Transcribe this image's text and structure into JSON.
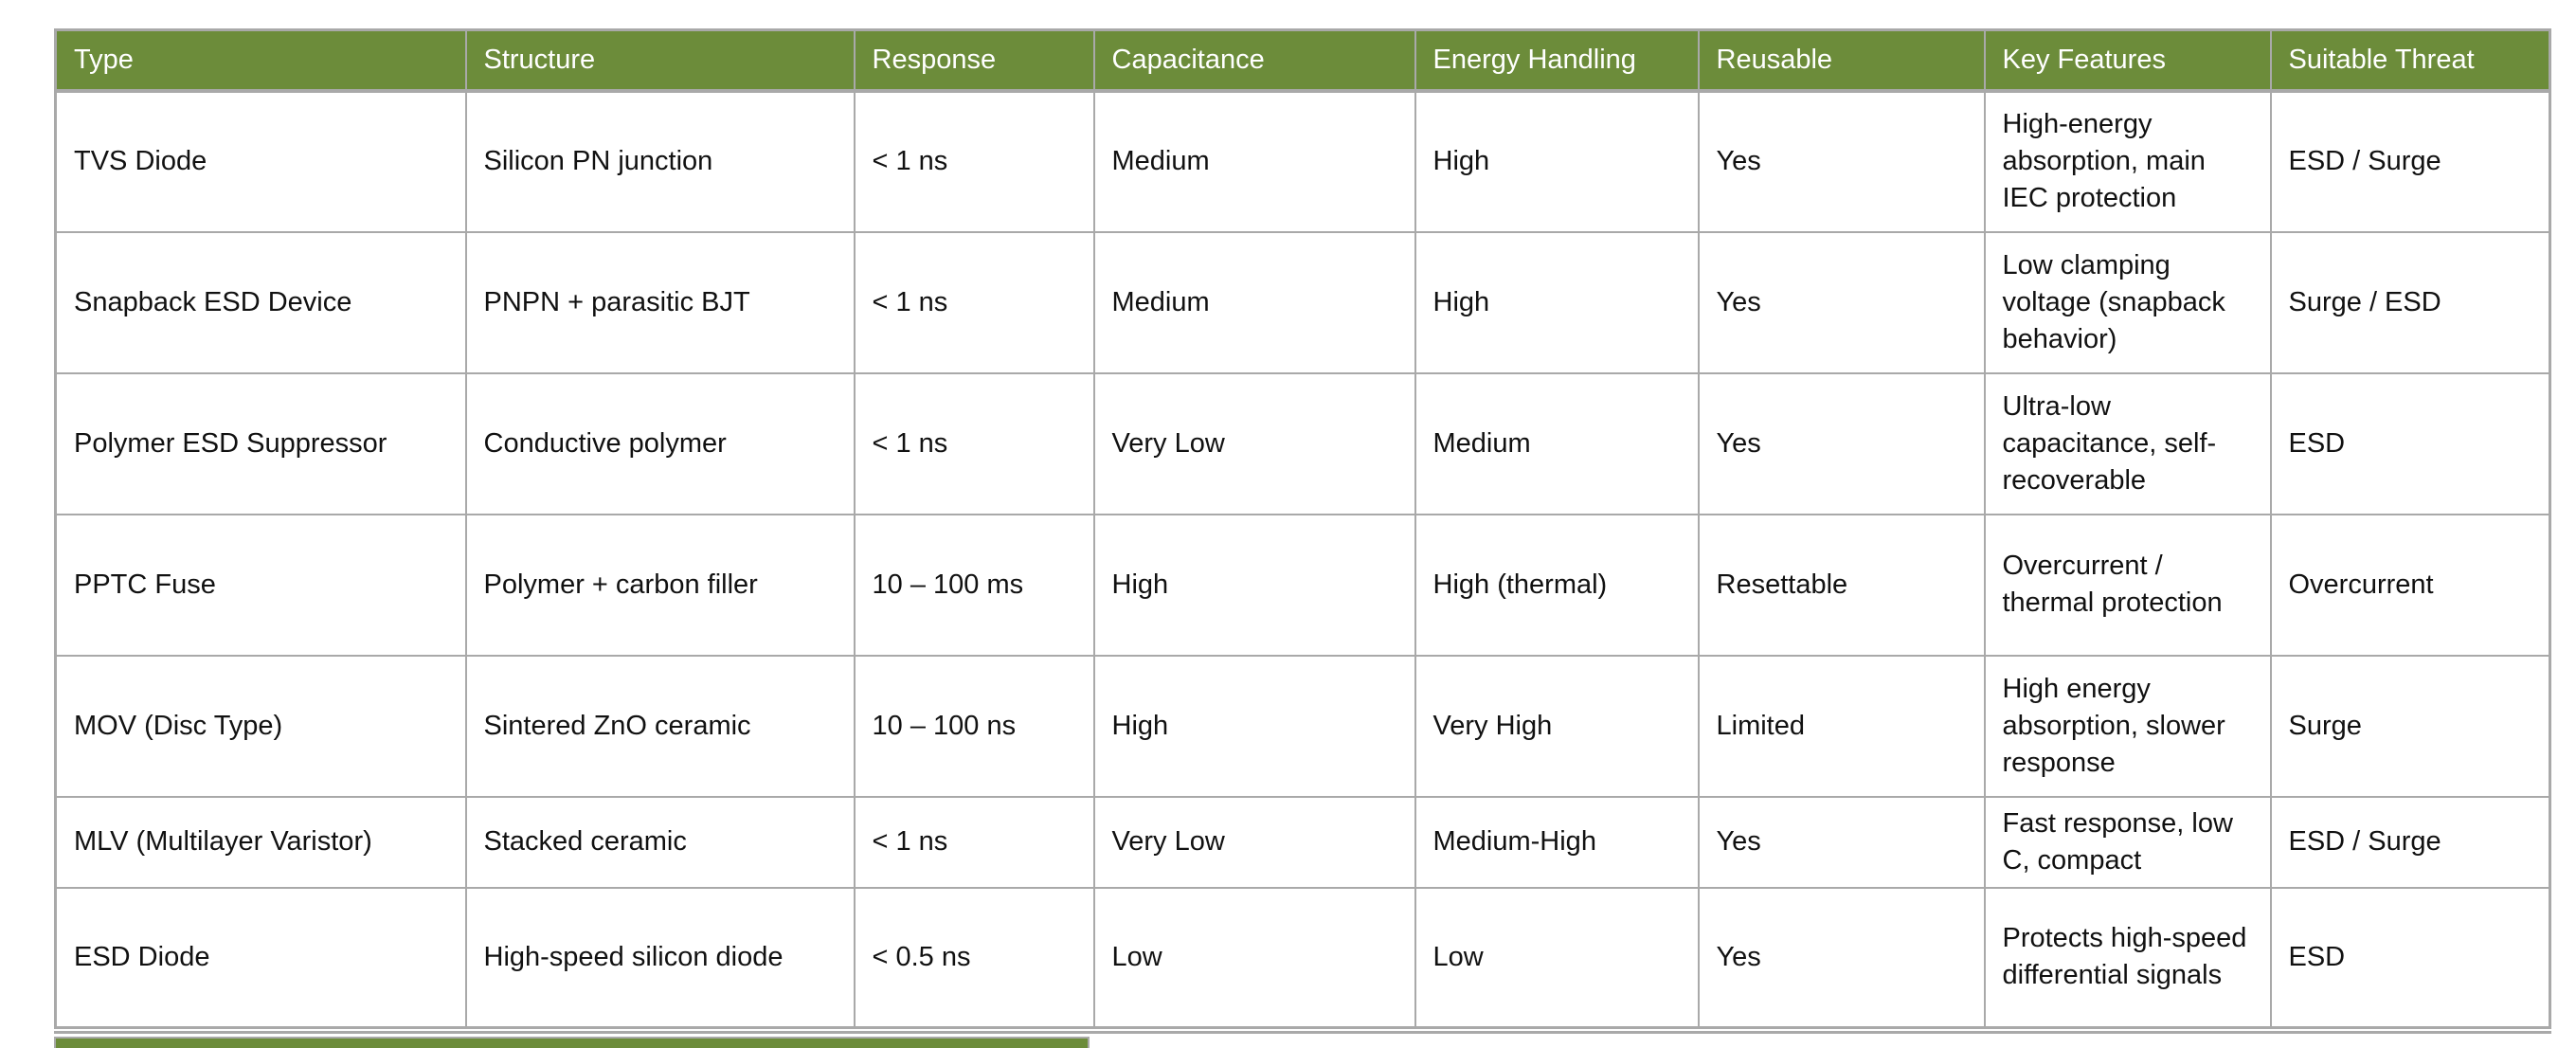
{
  "table": {
    "columns": [
      "Type",
      "Structure",
      "Response",
      "Capacitance",
      "Energy Handling",
      "Reusable",
      "Key Features",
      "Suitable Threat"
    ],
    "rows": [
      [
        "TVS Diode",
        "Silicon PN junction",
        "< 1 ns",
        "Medium",
        "High",
        "Yes",
        "High-energy absorption, main IEC protection",
        "ESD / Surge"
      ],
      [
        "Snapback ESD Device",
        "PNPN + parasitic BJT",
        "< 1 ns",
        "Medium",
        "High",
        "Yes",
        "Low clamping voltage (snapback behavior)",
        "Surge / ESD"
      ],
      [
        "Polymer ESD Suppressor",
        "Conductive polymer",
        "< 1 ns",
        "Very Low",
        "Medium",
        "Yes",
        "Ultra-low capacitance, self-recoverable",
        "ESD"
      ],
      [
        "PPTC Fuse",
        "Polymer + carbon filler",
        "10 – 100 ms",
        "High",
        "High (thermal)",
        "Resettable",
        "Overcurrent / thermal protection",
        "Overcurrent"
      ],
      [
        "MOV (Disc Type)",
        "Sintered ZnO ceramic",
        "10 – 100 ns",
        "High",
        "Very High",
        "Limited",
        "High energy absorption, slower response",
        "Surge"
      ],
      [
        "MLV (Multilayer Varistor)",
        "Stacked ceramic",
        "< 1 ns",
        "Very Low",
        "Medium-High",
        "Yes",
        "Fast response, low C, compact",
        "ESD / Surge"
      ],
      [
        "ESD Diode",
        "High-speed silicon diode",
        "< 0.5 ns",
        "Low",
        "Low",
        "Yes",
        "Protects high-speed differential signals",
        "ESD"
      ]
    ]
  },
  "colors": {
    "header_bg": "#6C8C3A",
    "header_text": "#FFFFFF",
    "border": "#A9A9A9",
    "cell_text": "#111111"
  }
}
